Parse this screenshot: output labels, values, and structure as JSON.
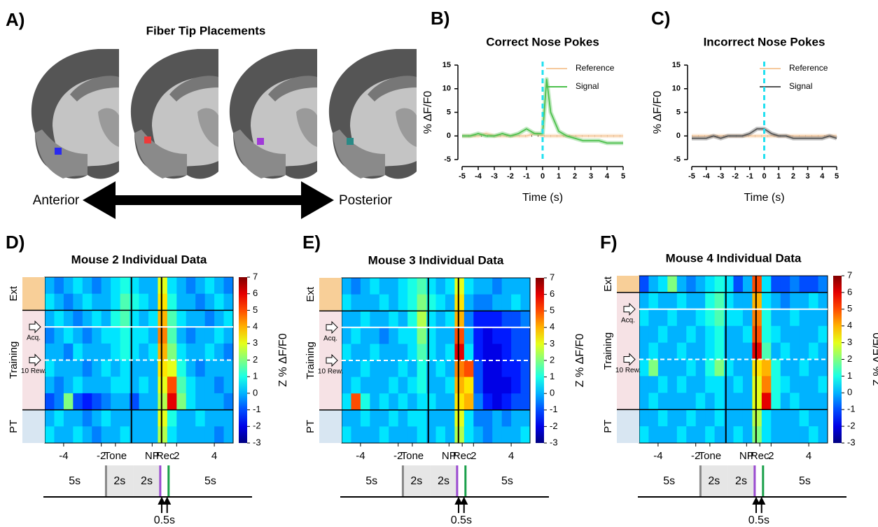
{
  "panel_labels": [
    "A)",
    "B)",
    "C)",
    "D)",
    "E)",
    "F)"
  ],
  "placements": {
    "title": "Fiber Tip Placements",
    "colors": [
      "#2a2af0",
      "#ee3a3a",
      "#a03ad8",
      "#2a8a86"
    ],
    "anterior": "Anterior",
    "posterior": "Posterior"
  },
  "timeline": {
    "segments": [
      "5s",
      "2s",
      "2s",
      "5s"
    ],
    "delay": "0.5s"
  },
  "chart_data": [
    {
      "type": "line",
      "title": "Correct Nose Pokes",
      "xlabel": "Time (s)",
      "ylabel": "% ΔF/F0",
      "x": [
        -5,
        -4.5,
        -4,
        -3.5,
        -3,
        -2.5,
        -2,
        -1.5,
        -1,
        -0.5,
        0,
        0.25,
        0.5,
        1,
        1.5,
        2,
        2.5,
        3,
        3.5,
        4,
        4.5,
        5
      ],
      "series": [
        {
          "name": "Reference",
          "color": "#f6c89c",
          "values": [
            0,
            0,
            0,
            0.5,
            0,
            0,
            0,
            0,
            0,
            0.5,
            0,
            0,
            0,
            0,
            0,
            0,
            0,
            0,
            0,
            0,
            0,
            0
          ]
        },
        {
          "name": "Signal",
          "color": "#4cc04c",
          "values": [
            0,
            0,
            0.5,
            0,
            0,
            0.5,
            0,
            0.5,
            1.5,
            0.5,
            0.5,
            12,
            5,
            1,
            0,
            -0.5,
            -1,
            -1,
            -1,
            -1.5,
            -1.5,
            -1.5
          ]
        }
      ],
      "xlim": [
        -5,
        5
      ],
      "ylim": [
        -5,
        15
      ],
      "xticks": [
        -5,
        -4,
        -3,
        -2,
        -1,
        0,
        1,
        2,
        3,
        4,
        5
      ],
      "yticks": [
        -5,
        0,
        5,
        10,
        15
      ],
      "event_lines": [
        0
      ],
      "event_color": "#22e0f0",
      "zero_line": true,
      "legend": "upper right"
    },
    {
      "type": "line",
      "title": "Incorrect Nose Pokes",
      "xlabel": "Time (s)",
      "ylabel": "% ΔF/F0",
      "x": [
        -5,
        -4.5,
        -4,
        -3.5,
        -3,
        -2.5,
        -2,
        -1.5,
        -1,
        -0.5,
        0,
        0.25,
        0.5,
        1,
        1.5,
        2,
        2.5,
        3,
        3.5,
        4,
        4.5,
        5
      ],
      "series": [
        {
          "name": "Reference",
          "color": "#f6c89c",
          "values": [
            0,
            0,
            0,
            0,
            0,
            0,
            0,
            0,
            0,
            0,
            0,
            0,
            0,
            0,
            0,
            0,
            0,
            0,
            0,
            0,
            0,
            0
          ]
        },
        {
          "name": "Signal",
          "color": "#555555",
          "values": [
            -0.5,
            -0.5,
            -0.5,
            0,
            -0.5,
            0,
            0,
            0,
            0.5,
            1.5,
            1.5,
            1,
            0.5,
            0,
            0,
            -0.5,
            -0.5,
            -0.5,
            -0.5,
            -0.5,
            0,
            -0.5
          ]
        }
      ],
      "xlim": [
        -5,
        5
      ],
      "ylim": [
        -5,
        15
      ],
      "xticks": [
        -5,
        -4,
        -3,
        -2,
        -1,
        0,
        1,
        2,
        3,
        4,
        5
      ],
      "yticks": [
        -5,
        0,
        5,
        10,
        15
      ],
      "event_lines": [
        0
      ],
      "event_color": "#22e0f0",
      "zero_line": true,
      "legend": "upper right"
    },
    {
      "type": "heatmap",
      "title": "Mouse 2 Individual Data",
      "colormap": "jet",
      "clim": [
        -3,
        7
      ],
      "cticks": [
        7,
        6,
        5,
        4,
        3,
        2,
        1,
        0,
        -1,
        -2,
        -3
      ],
      "colorbar_label": "Z % ΔF/F0",
      "xlim": [
        -5,
        5
      ],
      "xticks": [
        -4,
        -2,
        {
          "value": -1.25,
          "label": "Tone"
        },
        {
          "value": 0.7,
          "label": "NP"
        },
        {
          "value": 1.4,
          "label": "Rec"
        },
        2,
        4
      ],
      "xtick_colors": [
        null,
        null,
        "#999999",
        "#9a4ad0",
        "#1aa04a",
        null,
        null
      ],
      "event_lines": [
        -0.4,
        1.2
      ],
      "row_groups": [
        {
          "label": "Ext",
          "start": 0,
          "end": 2,
          "color": "#f8cf98"
        },
        {
          "label": "Training",
          "start": 2,
          "end": 8,
          "color": "#f6e2e5"
        },
        {
          "label": "PT",
          "start": 8,
          "end": 10,
          "color": "#d8e6f2"
        }
      ],
      "row_markers": [
        {
          "label": "Acq.",
          "row": 3,
          "style": "solid"
        },
        {
          "label": "10 Rew.",
          "row": 5,
          "style": "dashed"
        }
      ],
      "values": [
        [
          0,
          -0.5,
          0,
          0.5,
          0,
          -0.5,
          0,
          0.5,
          1,
          0.5,
          0,
          0,
          3,
          0.5,
          0,
          -0.5,
          0,
          0.5,
          0,
          -0.5
        ],
        [
          0.5,
          0,
          -0.5,
          0,
          0.5,
          0,
          0,
          0.5,
          1.5,
          1,
          0.5,
          0,
          3.5,
          1,
          0,
          0,
          -0.5,
          0,
          0.5,
          0
        ],
        [
          0,
          0.5,
          0,
          -0.5,
          0,
          0.5,
          0,
          1,
          1.5,
          0.5,
          0,
          0.5,
          4,
          1.5,
          0.5,
          0,
          0,
          -0.5,
          0,
          0.5
        ],
        [
          -0.5,
          0,
          0.5,
          0,
          -0.5,
          0,
          0.5,
          0.5,
          1,
          0.5,
          0.5,
          0,
          4.5,
          1.5,
          0,
          -0.5,
          0,
          0,
          0.5,
          0
        ],
        [
          0,
          0,
          -0.5,
          0.5,
          0,
          0,
          0,
          0.5,
          1,
          0.5,
          0,
          0.5,
          4,
          2,
          0.5,
          0,
          0,
          0.5,
          0,
          -0.5
        ],
        [
          0.5,
          0,
          0,
          0,
          -0.5,
          0,
          0.5,
          0,
          0.5,
          0,
          0,
          0,
          3.5,
          3,
          1,
          0,
          -0.5,
          0,
          0,
          0
        ],
        [
          0,
          -0.5,
          0,
          0.5,
          0,
          0,
          0,
          0.5,
          0.5,
          0,
          0.5,
          0,
          3,
          5,
          1.5,
          0.5,
          0,
          0,
          -0.5,
          0
        ],
        [
          -1,
          -0.5,
          2,
          -1,
          -1.5,
          -1,
          -0.5,
          0,
          0,
          -1,
          0,
          0,
          2.5,
          6,
          2,
          0.5,
          0,
          0,
          0,
          -0.5
        ],
        [
          0,
          0.5,
          0,
          0,
          -0.5,
          0,
          0.5,
          0,
          0,
          0,
          0,
          0,
          3,
          1,
          0,
          0,
          0.5,
          0,
          0,
          0
        ],
        [
          0.5,
          0,
          0,
          0.5,
          0,
          -0.5,
          0,
          0,
          0.5,
          0,
          0,
          0,
          2.5,
          0.5,
          0,
          0,
          0,
          0,
          -0.5,
          0
        ]
      ]
    },
    {
      "type": "heatmap",
      "title": "Mouse 3 Individual Data",
      "colormap": "jet",
      "clim": [
        -3,
        7
      ],
      "cticks": [
        7,
        6,
        5,
        4,
        3,
        2,
        1,
        0,
        -1,
        -2,
        -3
      ],
      "colorbar_label": "Z % ΔF/F0",
      "xlim": [
        -5,
        5
      ],
      "xticks": [
        -4,
        -2,
        {
          "value": -1.25,
          "label": "Tone"
        },
        {
          "value": 0.7,
          "label": "NP"
        },
        {
          "value": 1.4,
          "label": "Rec"
        },
        2,
        4
      ],
      "xtick_colors": [
        null,
        null,
        "#999999",
        "#9a4ad0",
        "#1aa04a",
        null,
        null
      ],
      "event_lines": [
        -0.4,
        1.2
      ],
      "row_groups": [
        {
          "label": "Ext",
          "start": 0,
          "end": 2,
          "color": "#f8cf98"
        },
        {
          "label": "Training",
          "start": 2,
          "end": 8,
          "color": "#f6e2e5"
        },
        {
          "label": "PT",
          "start": 8,
          "end": 10,
          "color": "#d8e6f2"
        }
      ],
      "row_markers": [
        {
          "label": "Acq.",
          "row": 3,
          "style": "solid"
        },
        {
          "label": "10 Rew.",
          "row": 5,
          "style": "dashed"
        }
      ],
      "values": [
        [
          0,
          -0.5,
          0,
          0.5,
          0,
          0,
          0.5,
          1,
          1.5,
          0.5,
          0,
          0.5,
          3,
          0.5,
          0,
          0,
          -0.5,
          0,
          0,
          0
        ],
        [
          0.5,
          0,
          0,
          0,
          0.5,
          0,
          0.5,
          1,
          2,
          1,
          0.5,
          0,
          3.5,
          0,
          -0.5,
          -0.5,
          0,
          0,
          0.5,
          0
        ],
        [
          0,
          0,
          0.5,
          0,
          0,
          0.5,
          0,
          1,
          2.5,
          0.5,
          0,
          0.5,
          4,
          -0.5,
          -1.5,
          -1.5,
          -1.5,
          -1,
          -1,
          -0.5
        ],
        [
          0,
          0.5,
          0,
          0,
          -0.5,
          0,
          0.5,
          0.5,
          2,
          0.5,
          0,
          0,
          5,
          0,
          -1.5,
          -2,
          -1.5,
          -1.5,
          -1,
          -1
        ],
        [
          0.5,
          0,
          0,
          0.5,
          0,
          0,
          0,
          0.5,
          1.5,
          0.5,
          0,
          0.5,
          6,
          0.5,
          -1.5,
          -2,
          -2,
          -1.5,
          -1,
          -1
        ],
        [
          0,
          0,
          0.5,
          0,
          0,
          0,
          0.5,
          0,
          1,
          0,
          0.5,
          0,
          4.5,
          5,
          -1,
          -2,
          -2,
          -1.5,
          -1.5,
          -1
        ],
        [
          0,
          0.5,
          0,
          0,
          0,
          0.5,
          0,
          0.5,
          1,
          0,
          0,
          0.5,
          4,
          3.5,
          -1,
          -2,
          -2,
          -2,
          -1.5,
          -1
        ],
        [
          0.5,
          5,
          1,
          0,
          0.5,
          0,
          0.5,
          0,
          0.5,
          0.5,
          0,
          0,
          3.5,
          4,
          -0.5,
          -1.5,
          -2,
          -1.5,
          -1,
          -1
        ],
        [
          0,
          0,
          0.5,
          0,
          0,
          0.5,
          0,
          0.5,
          0.5,
          0,
          0,
          0,
          3,
          0.5,
          -0.5,
          -0.5,
          0,
          -0.5,
          0,
          0
        ],
        [
          0.5,
          0,
          0,
          0,
          0.5,
          0,
          0,
          0,
          0.5,
          0,
          0.5,
          0,
          2.5,
          0.5,
          0,
          -0.5,
          0,
          0,
          0,
          0.5
        ]
      ]
    },
    {
      "type": "heatmap",
      "title": "Mouse 4 Individual Data",
      "colormap": "jet",
      "clim": [
        -3,
        7
      ],
      "cticks": [
        7,
        6,
        5,
        4,
        3,
        2,
        1,
        0,
        -1,
        -2,
        -3
      ],
      "colorbar_label": "Z % ΔF/F0",
      "xlim": [
        -5,
        5
      ],
      "xticks": [
        -4,
        -2,
        {
          "value": -1.25,
          "label": "Tone"
        },
        {
          "value": 0.7,
          "label": "NP"
        },
        {
          "value": 1.4,
          "label": "Rec"
        },
        2,
        4
      ],
      "xtick_colors": [
        null,
        null,
        "#999999",
        "#9a4ad0",
        "#1aa04a",
        null,
        null
      ],
      "event_lines": [
        -0.4,
        1.2
      ],
      "row_groups": [
        {
          "label": "Ext",
          "start": 0,
          "end": 1,
          "color": "#f8cf98"
        },
        {
          "label": "Training",
          "start": 1,
          "end": 8,
          "color": "#f6e2e5"
        },
        {
          "label": "PT",
          "start": 8,
          "end": 10,
          "color": "#d8e6f2"
        }
      ],
      "row_markers": [
        {
          "label": "Acq.",
          "row": 2,
          "style": "solid"
        },
        {
          "label": "10 Rew.",
          "row": 5,
          "style": "dashed"
        }
      ],
      "values": [
        [
          -1,
          0,
          0.5,
          2,
          0,
          -0.5,
          0,
          0.5,
          1,
          0.5,
          -1,
          0,
          5,
          0.5,
          -1,
          -1,
          -0.5,
          -1,
          -1,
          -0.5
        ],
        [
          0,
          0.5,
          0,
          0,
          0.5,
          0,
          0,
          1,
          1.5,
          0.5,
          0,
          0,
          4,
          0.5,
          0,
          -0.5,
          0,
          0,
          0.5,
          0
        ],
        [
          0.5,
          0,
          0,
          0.5,
          0,
          0,
          0.5,
          1,
          1.5,
          0.5,
          0.5,
          0,
          4.5,
          1,
          0,
          0,
          0.5,
          0,
          0,
          0
        ],
        [
          0,
          0,
          0.5,
          0,
          0,
          0.5,
          0,
          0.5,
          1,
          0,
          0,
          0.5,
          5,
          1,
          0.5,
          0,
          0,
          0,
          0,
          0.5
        ],
        [
          0,
          0.5,
          0,
          0,
          0.5,
          0,
          0,
          0.5,
          1,
          0,
          0,
          0,
          6,
          1.5,
          0,
          0.5,
          0,
          0,
          0.5,
          0
        ],
        [
          0.5,
          2,
          0,
          0,
          0,
          0.5,
          0,
          1,
          2,
          0.5,
          0,
          0,
          3.5,
          4,
          1,
          0,
          0,
          0.5,
          0,
          0
        ],
        [
          0,
          0,
          0.5,
          0,
          0.5,
          0,
          0,
          0.5,
          0.5,
          0,
          0.5,
          0,
          3,
          4.5,
          1,
          0.5,
          0,
          0,
          0,
          0.5
        ],
        [
          0,
          0.5,
          0,
          0,
          0,
          0,
          0.5,
          0,
          0.5,
          0,
          0,
          0,
          3,
          6,
          1,
          0,
          0.5,
          0,
          0,
          0
        ],
        [
          0,
          0,
          0.5,
          0,
          0,
          0.5,
          0,
          0,
          0.5,
          0,
          0,
          0,
          2.5,
          0.5,
          0,
          0,
          0,
          0.5,
          0,
          0
        ],
        [
          0.5,
          0,
          0,
          0,
          0.5,
          0,
          0,
          0.5,
          0,
          0,
          0.5,
          0,
          2,
          0.5,
          0,
          0,
          0,
          0,
          0.5,
          0
        ]
      ]
    }
  ]
}
